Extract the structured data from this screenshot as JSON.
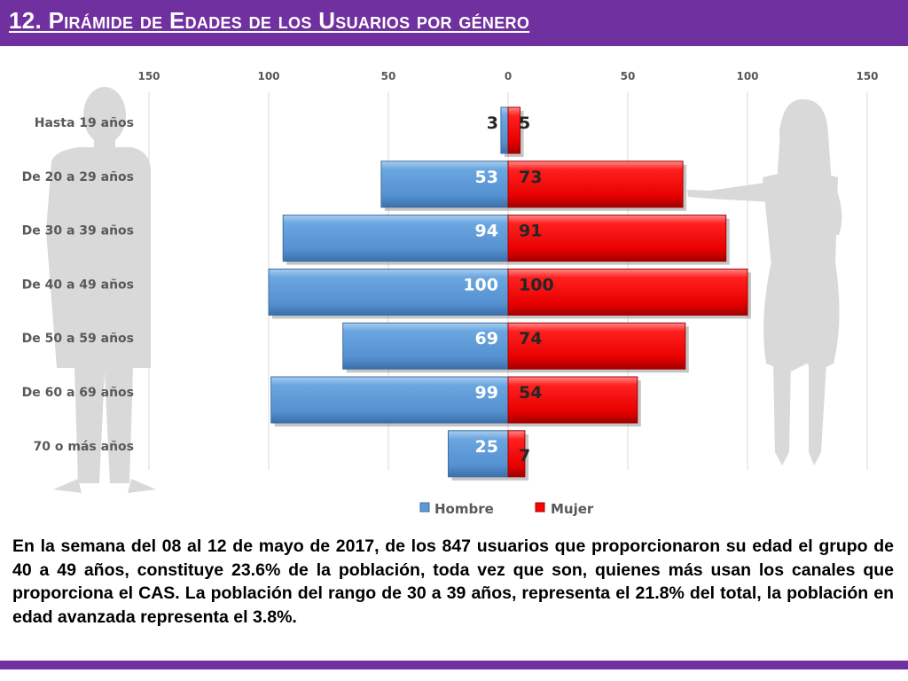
{
  "header": {
    "title": "12. Pirámide de Edades de los Usuarios por género"
  },
  "chart_data": {
    "type": "bar",
    "orientation": "horizontal",
    "layout": "population-pyramid",
    "title": "",
    "xlabel": "",
    "ylabel": "",
    "categories": [
      "Hasta 19 años",
      "De 20 a 29 años",
      "De 30 a 39 años",
      "De 40 a 49 años",
      "De 50 a 59 años",
      "De 60 a 69 años",
      "70 o más años"
    ],
    "x_ticks": [
      "150",
      "100",
      "50",
      "0",
      "50",
      "100",
      "150"
    ],
    "xlim": [
      -150,
      150
    ],
    "grid": true,
    "legend": "bottom",
    "series": [
      {
        "name": "Hombre",
        "values": [
          3,
          53,
          94,
          100,
          69,
          99,
          25
        ],
        "color": "#5b9bd5"
      },
      {
        "name": "Mujer",
        "values": [
          5,
          73,
          91,
          100,
          74,
          54,
          7
        ],
        "color": "#ff0000"
      }
    ]
  },
  "description": "En la semana del 08 al 12 de mayo de 2017, de los 847 usuarios  que proporcionaron su edad el grupo de 40 a 49 años, constituye 23.6% de la población, toda vez que son, quienes más usan los canales que proporciona el CAS. La población del rango de 30 a 39 años, representa el 21.8% del total, la población en edad avanzada representa el 3.8%.",
  "colors": {
    "header_bar": "#7030a0",
    "silhouette": "#d9d9d9"
  }
}
